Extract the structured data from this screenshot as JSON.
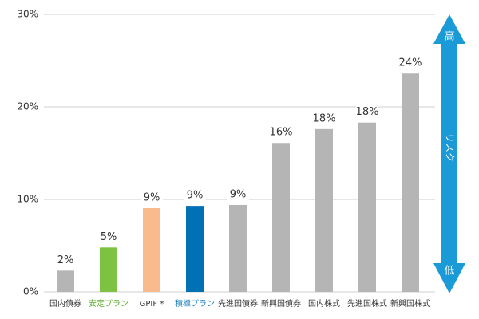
{
  "chart_data": {
    "type": "bar",
    "categories": [
      "国内債券",
      "安定プラン",
      "GPIF *",
      "積極プラン",
      "先進国債券",
      "新興国債券",
      "国内株式",
      "先進国株式",
      "新興国株式"
    ],
    "values": [
      2.3,
      4.8,
      9.05,
      9.3,
      9.4,
      16.1,
      17.6,
      18.3,
      23.6
    ],
    "value_labels": [
      "2%",
      "5%",
      "9%",
      "9%",
      "9%",
      "16%",
      "18%",
      "18%",
      "24%"
    ],
    "colors": [
      "#b5b5b5",
      "#7dc242",
      "#f9bb8b",
      "#0071b3",
      "#b5b5b5",
      "#b5b5b5",
      "#b5b5b5",
      "#b5b5b5",
      "#b5b5b5"
    ],
    "category_colors": [
      "#333333",
      "#5fae2e",
      "#333333",
      "#1a7fc1",
      "#333333",
      "#333333",
      "#333333",
      "#333333",
      "#333333"
    ],
    "ylim": [
      0,
      30
    ],
    "yticks": [
      {
        "value": 0,
        "label": "0%"
      },
      {
        "value": 10,
        "label": "10%"
      },
      {
        "value": 20,
        "label": "20%"
      },
      {
        "value": 30,
        "label": "30%"
      }
    ],
    "grid": true,
    "annotations": [
      "高",
      "リスク",
      "低"
    ]
  }
}
